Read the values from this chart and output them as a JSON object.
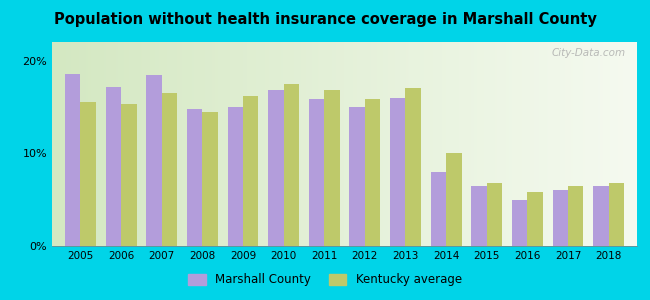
{
  "title": "Population without health insurance coverage in Marshall County",
  "years": [
    2005,
    2006,
    2007,
    2008,
    2009,
    2010,
    2011,
    2012,
    2013,
    2014,
    2015,
    2016,
    2017,
    2018
  ],
  "marshall_county": [
    18.5,
    17.2,
    18.4,
    14.8,
    15.0,
    16.8,
    15.8,
    15.0,
    16.0,
    8.0,
    6.5,
    5.0,
    6.0,
    6.5
  ],
  "kentucky_avg": [
    15.5,
    15.3,
    16.5,
    14.5,
    16.2,
    17.5,
    16.8,
    15.8,
    17.0,
    10.0,
    6.8,
    5.8,
    6.5,
    6.8
  ],
  "bar_color_marshall": "#b39ddb",
  "bar_color_kentucky": "#bec96a",
  "background_outer": "#00d4e8",
  "background_inner_left": "#d4e8c2",
  "background_inner_right": "#f5faf0",
  "ylim": [
    0,
    22
  ],
  "yticks": [
    0,
    10,
    20
  ],
  "ytick_labels": [
    "0%",
    "10%",
    "20%"
  ],
  "legend_marshall": "Marshall County",
  "legend_kentucky": "Kentucky average",
  "watermark": "City-Data.com"
}
